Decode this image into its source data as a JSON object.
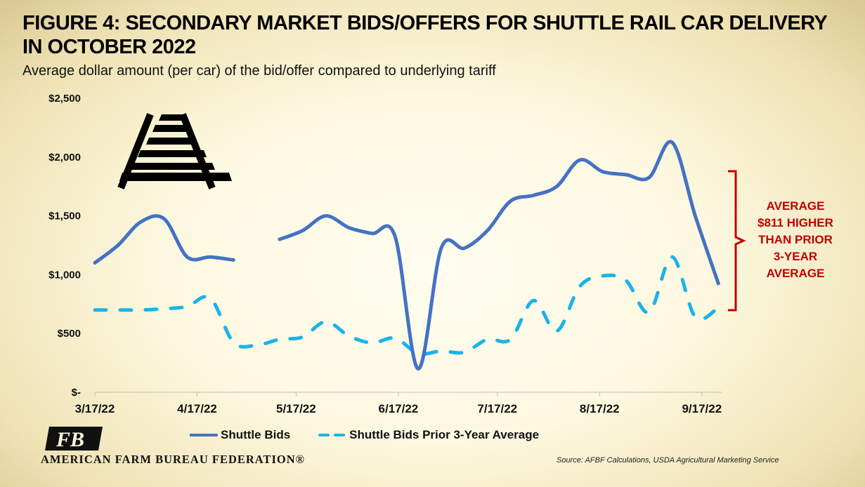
{
  "title": "FIGURE 4: SECONDARY MARKET BIDS/OFFERS FOR SHUTTLE RAIL CAR DELIVERY IN OCTOBER 2022",
  "subtitle": "Average dollar amount (per car) of the bid/offer compared to underlying tariff",
  "callout": "AVERAGE $811 HIGHER THAN PRIOR 3-YEAR AVERAGE",
  "source": "Source: AFBF Calculations, USDA Agricultural Marketing Service",
  "logo_text": "AMERICAN FARM BUREAU FEDERATION®",
  "logo_mark": "FB",
  "icons": [
    "railroad-track-icon",
    "afbf-logo"
  ],
  "colors": {
    "bids": "#4472c4",
    "avg": "#1ab3ea",
    "callout": "#c00000"
  },
  "chart_data": {
    "type": "line",
    "title": "",
    "xlabel": "",
    "ylabel": "",
    "ylim": [
      0,
      2500
    ],
    "yticks": [
      0,
      500,
      1000,
      1500,
      2000,
      2500
    ],
    "ytick_labels": [
      "$-",
      "$500",
      "$1,000",
      "$1,500",
      "$2,000",
      "$2,500"
    ],
    "x_ticks": [
      "3/17/22",
      "4/17/22",
      "5/17/22",
      "6/17/22",
      "7/17/22",
      "8/17/22",
      "9/17/22"
    ],
    "series": [
      {
        "name": "Shuttle Bids",
        "style": "solid",
        "segments": [
          [
            [
              "2022-03-17",
              1100
            ],
            [
              "2022-03-24",
              1250
            ],
            [
              "2022-03-31",
              1450
            ],
            [
              "2022-04-07",
              1475
            ],
            [
              "2022-04-14",
              1150
            ],
            [
              "2022-04-21",
              1150
            ],
            [
              "2022-04-28",
              1125
            ]
          ],
          [
            [
              "2022-05-12",
              1300
            ],
            [
              "2022-05-19",
              1375
            ],
            [
              "2022-05-26",
              1500
            ],
            [
              "2022-06-02",
              1400
            ],
            [
              "2022-06-09",
              1350
            ],
            [
              "2022-06-16",
              1325
            ],
            [
              "2022-06-23",
              200
            ],
            [
              "2022-06-30",
              1225
            ],
            [
              "2022-07-07",
              1225
            ],
            [
              "2022-07-14",
              1375
            ],
            [
              "2022-07-21",
              1625
            ],
            [
              "2022-07-28",
              1675
            ],
            [
              "2022-08-04",
              1750
            ],
            [
              "2022-08-11",
              1975
            ],
            [
              "2022-08-18",
              1875
            ],
            [
              "2022-08-25",
              1850
            ],
            [
              "2022-09-01",
              1825
            ],
            [
              "2022-09-08",
              2125
            ],
            [
              "2022-09-15",
              1500
            ],
            [
              "2022-09-22",
              925
            ]
          ]
        ]
      },
      {
        "name": "Shuttle Bids Prior 3-Year Average",
        "style": "dashed",
        "segments": [
          [
            [
              "2022-03-17",
              700
            ],
            [
              "2022-03-24",
              700
            ],
            [
              "2022-03-31",
              700
            ],
            [
              "2022-04-07",
              710
            ],
            [
              "2022-04-14",
              730
            ],
            [
              "2022-04-21",
              800
            ],
            [
              "2022-04-28",
              425
            ],
            [
              "2022-05-05",
              400
            ],
            [
              "2022-05-12",
              450
            ],
            [
              "2022-05-19",
              470
            ],
            [
              "2022-05-26",
              600
            ],
            [
              "2022-06-02",
              480
            ],
            [
              "2022-06-09",
              420
            ],
            [
              "2022-06-16",
              460
            ],
            [
              "2022-06-23",
              330
            ],
            [
              "2022-06-30",
              350
            ],
            [
              "2022-07-07",
              340
            ],
            [
              "2022-07-14",
              450
            ],
            [
              "2022-07-21",
              450
            ],
            [
              "2022-07-28",
              780
            ],
            [
              "2022-08-04",
              520
            ],
            [
              "2022-08-11",
              900
            ],
            [
              "2022-08-18",
              990
            ],
            [
              "2022-08-25",
              950
            ],
            [
              "2022-09-01",
              680
            ],
            [
              "2022-09-08",
              1150
            ],
            [
              "2022-09-15",
              640
            ],
            [
              "2022-09-22",
              720
            ]
          ]
        ]
      }
    ]
  }
}
